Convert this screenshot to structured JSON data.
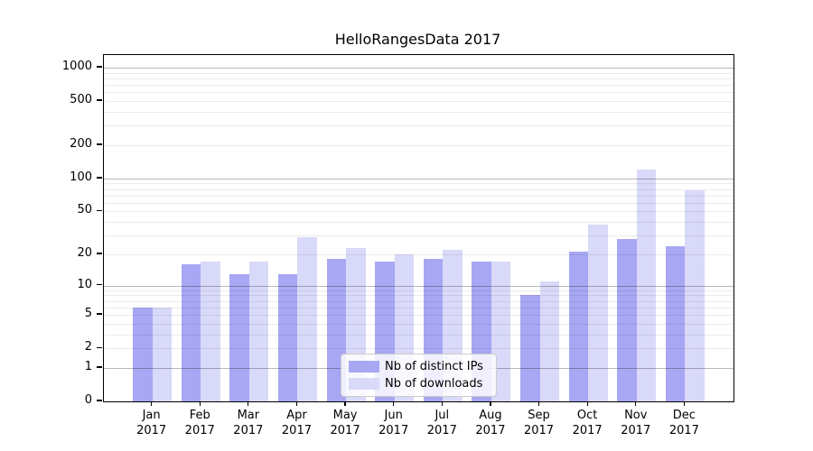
{
  "chart_data": {
    "type": "bar",
    "title": "HelloRangesData 2017",
    "categories": [
      "Jan 2017",
      "Feb 2017",
      "Mar 2017",
      "Apr 2017",
      "May 2017",
      "Jun 2017",
      "Jul 2017",
      "Aug 2017",
      "Sep 2017",
      "Oct 2017",
      "Nov 2017",
      "Dec 2017"
    ],
    "series": [
      {
        "name": "Nb of distinct IPs",
        "color": "#a7a7f4",
        "values": [
          6,
          16,
          13,
          13,
          18,
          17,
          18,
          17,
          8,
          21,
          28,
          24
        ]
      },
      {
        "name": "Nb of downloads",
        "color": "#d9d9f9",
        "values": [
          6,
          17,
          17,
          29,
          23,
          20,
          22,
          17,
          11,
          38,
          120,
          78
        ]
      }
    ],
    "xlabel": "",
    "ylabel": "",
    "yscale": "log1p",
    "ylim": [
      0,
      1300
    ],
    "yticks": [
      0,
      1,
      2,
      5,
      10,
      20,
      50,
      100,
      200,
      500,
      1000
    ],
    "major_gridlines": [
      1,
      10,
      100,
      1000
    ],
    "minor_gridlines": [
      2,
      3,
      4,
      5,
      6,
      7,
      8,
      9,
      20,
      30,
      40,
      50,
      60,
      70,
      80,
      90,
      200,
      300,
      400,
      500,
      600,
      700,
      800,
      900
    ],
    "grid": "on",
    "legend_position": "lower center"
  }
}
